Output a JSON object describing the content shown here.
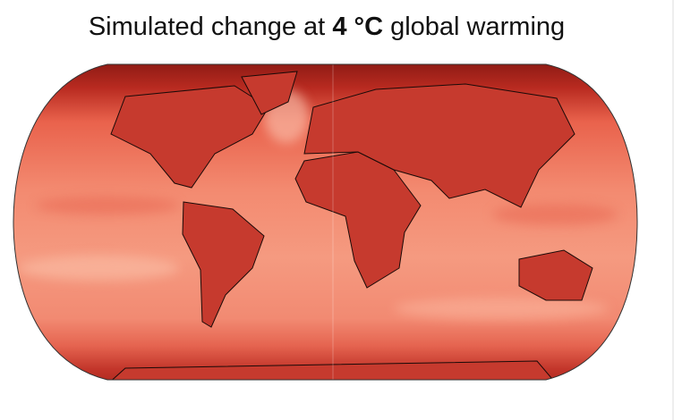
{
  "title": {
    "before": "Simulated change at ",
    "emphasis": "4 °C",
    "after": " global warming"
  }
}
